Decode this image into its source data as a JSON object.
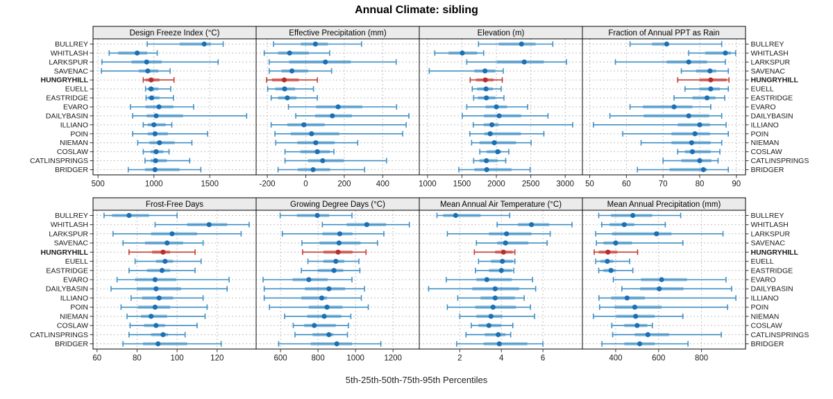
{
  "title": "Annual Climate: sibling",
  "caption": "5th-25th-50th-75th-95th Percentiles",
  "colors": {
    "series_line": "#3f8fc5",
    "series_dot": "#1a6fb5",
    "highlight_line": "#c43c34",
    "highlight_dot": "#b52f2c",
    "strip_bg": "#ebebeb",
    "panel_border": "#000000",
    "grid": "#bfbfbf",
    "tick": "#333333",
    "label_text": "#1a1a1a"
  },
  "chart_data": {
    "type": "dotplot-percentiles",
    "percentile_labels": [
      "5th",
      "25th",
      "50th",
      "75th",
      "95th"
    ],
    "stations": [
      "BULLREY",
      "WHITLASH",
      "LARKSPUR",
      "SAVENAC",
      "HUNGRYHILL",
      "EUELL",
      "EASTRIDGE",
      "EVARO",
      "DAILYBASIN",
      "ILLIANO",
      "POIN",
      "NIEMAN",
      "COSLAW",
      "CATLINSPRINGS",
      "BRIDGER"
    ],
    "highlight_station": "HUNGRYHILL",
    "legend_position": "none",
    "grid": "dashed",
    "panels": [
      {
        "title": "Design Freeze Index (°C)",
        "xlim": [
          455,
          1915
        ],
        "ticks": [
          500,
          1000,
          1500
        ],
        "values": [
          [
            940,
            1230,
            1450,
            1510,
            1620
          ],
          [
            600,
            680,
            850,
            940,
            1030
          ],
          [
            535,
            800,
            935,
            1070,
            1575
          ],
          [
            530,
            865,
            945,
            1040,
            1145
          ],
          [
            905,
            925,
            975,
            1050,
            1180
          ],
          [
            925,
            945,
            975,
            1040,
            1150
          ],
          [
            930,
            945,
            980,
            1050,
            1175
          ],
          [
            790,
            925,
            1045,
            1175,
            1355
          ],
          [
            810,
            935,
            1020,
            1260,
            1830
          ],
          [
            905,
            945,
            1000,
            1105,
            1160
          ],
          [
            810,
            945,
            1010,
            1125,
            1480
          ],
          [
            855,
            960,
            1050,
            1185,
            1340
          ],
          [
            905,
            970,
            1020,
            1085,
            1135
          ],
          [
            920,
            970,
            1015,
            1115,
            1320
          ],
          [
            770,
            920,
            1010,
            1230,
            1420
          ]
        ]
      },
      {
        "title": "Effective Precipitation (mm)",
        "xlim": [
          -258,
          590
        ],
        "ticks": [
          -200,
          0,
          200,
          400
        ],
        "values": [
          [
            -168,
            -26,
            50,
            115,
            290
          ],
          [
            -216,
            -144,
            -84,
            16,
            124
          ],
          [
            -190,
            -86,
            102,
            234,
            470
          ],
          [
            -190,
            -126,
            -72,
            12,
            134
          ],
          [
            -204,
            -176,
            -112,
            -36,
            60
          ],
          [
            -198,
            -158,
            -110,
            -56,
            40
          ],
          [
            -180,
            -144,
            -96,
            -48,
            60
          ],
          [
            -90,
            54,
            168,
            294,
            472
          ],
          [
            -52,
            48,
            138,
            240,
            536
          ],
          [
            -180,
            -96,
            -10,
            98,
            522
          ],
          [
            -160,
            -78,
            30,
            174,
            504
          ],
          [
            -156,
            -44,
            52,
            150,
            270
          ],
          [
            -108,
            -28,
            60,
            126,
            146
          ],
          [
            -108,
            12,
            88,
            198,
            420
          ],
          [
            -144,
            -42,
            38,
            126,
            306
          ]
        ]
      },
      {
        "title": "Elevation (m)",
        "xlim": [
          880,
          3250
        ],
        "ticks": [
          1000,
          1500,
          2000,
          2500,
          3000
        ],
        "values": [
          [
            1740,
            2035,
            2365,
            2570,
            2820
          ],
          [
            1105,
            1305,
            1505,
            1720,
            1815
          ],
          [
            1570,
            2010,
            2405,
            2690,
            3020
          ],
          [
            1025,
            1680,
            1835,
            1985,
            2100
          ],
          [
            1620,
            1705,
            1840,
            1960,
            2085
          ],
          [
            1650,
            1720,
            1850,
            1950,
            2070
          ],
          [
            1670,
            1730,
            1855,
            1985,
            2110
          ],
          [
            1570,
            1845,
            2000,
            2155,
            2455
          ],
          [
            1505,
            1820,
            2040,
            2360,
            2750
          ],
          [
            1665,
            1815,
            1935,
            2035,
            3110
          ],
          [
            1615,
            1825,
            1910,
            2355,
            2690
          ],
          [
            1640,
            1755,
            1970,
            2285,
            2505
          ],
          [
            1760,
            1860,
            2020,
            2070,
            2180
          ],
          [
            1670,
            1755,
            1855,
            2020,
            2135
          ],
          [
            1455,
            1680,
            1860,
            2220,
            2490
          ]
        ]
      },
      {
        "title": "Fraction of Annual PPT as Rain",
        "xlim": [
          48,
          92.5
        ],
        "ticks": [
          50,
          60,
          70,
          80,
          90
        ],
        "values": [
          [
            61,
            67,
            71,
            71.5,
            86
          ],
          [
            77,
            81.5,
            87,
            88.5,
            89.8
          ],
          [
            57,
            71,
            77,
            82,
            87
          ],
          [
            75,
            79,
            82.8,
            84.5,
            87.8
          ],
          [
            74,
            80,
            83,
            87.3,
            88
          ],
          [
            76,
            80,
            83,
            85.5,
            87.8
          ],
          [
            73,
            78,
            82,
            84.3,
            86.8
          ],
          [
            61,
            64.5,
            73,
            78,
            83
          ],
          [
            55.5,
            64.7,
            77,
            82.6,
            86
          ],
          [
            51,
            74,
            80,
            82.8,
            87.2
          ],
          [
            59,
            72.3,
            78.7,
            82.8,
            87.8
          ],
          [
            64,
            72.3,
            77.8,
            83,
            86
          ],
          [
            74,
            76,
            78,
            83,
            85.5
          ],
          [
            70,
            75,
            80,
            83.2,
            85
          ],
          [
            63,
            71.8,
            81,
            82,
            87.8
          ]
        ]
      },
      {
        "title": "Frost-Free Days",
        "xlim": [
          58,
          139.5
        ],
        "ticks": [
          60,
          80,
          100,
          120
        ],
        "values": [
          [
            63.5,
            67.5,
            76,
            86,
            100
          ],
          [
            89,
            105,
            116,
            125,
            136
          ],
          [
            68,
            87,
            97.5,
            110,
            132
          ],
          [
            73,
            84,
            95,
            103,
            113
          ],
          [
            76,
            87.5,
            93,
            96.5,
            109
          ],
          [
            79,
            89.5,
            94,
            98,
            112
          ],
          [
            76,
            85,
            92.5,
            96.5,
            109
          ],
          [
            70,
            79,
            89,
            99.5,
            126
          ],
          [
            67,
            80,
            89.5,
            102,
            125
          ],
          [
            77,
            82.5,
            91,
            98,
            113
          ],
          [
            72,
            80.5,
            89,
            96.5,
            115
          ],
          [
            75,
            82,
            87,
            95,
            114
          ],
          [
            76.5,
            83.5,
            89.5,
            94,
            110
          ],
          [
            76,
            87,
            93,
            95.5,
            104
          ],
          [
            73,
            83,
            90.5,
            105,
            122
          ]
        ]
      },
      {
        "title": "Growing Degree Days (°C)",
        "xlim": [
          470,
          1340
        ],
        "ticks": [
          600,
          800,
          1000,
          1200
        ],
        "values": [
          [
            598,
            687,
            796,
            860,
            981
          ],
          [
            823,
            953,
            1060,
            1163,
            1287
          ],
          [
            610,
            823,
            916,
            984,
            1151
          ],
          [
            714,
            808,
            912,
            1027,
            1117
          ],
          [
            718,
            829,
            907,
            984,
            1056
          ],
          [
            746,
            829,
            895,
            940,
            1018
          ],
          [
            711,
            798,
            885,
            934,
            1023
          ],
          [
            507,
            664,
            751,
            851,
            981
          ],
          [
            513,
            730,
            858,
            944,
            1048
          ],
          [
            513,
            711,
            820,
            848,
            1031
          ],
          [
            541,
            751,
            848,
            930,
            1068
          ],
          [
            622,
            742,
            833,
            924,
            975
          ],
          [
            668,
            726,
            780,
            895,
            962
          ],
          [
            677,
            771,
            858,
            882,
            957
          ],
          [
            590,
            761,
            900,
            981,
            1135
          ]
        ]
      },
      {
        "title": "Mean Annual Air Temperature (°C)",
        "xlim": [
          0.05,
          7.9
        ],
        "ticks": [
          2,
          4,
          6
        ],
        "values": [
          [
            0.9,
            1.2,
            1.8,
            3.0,
            4.4
          ],
          [
            3.8,
            4.8,
            5.45,
            6.3,
            7.4
          ],
          [
            1.4,
            3.4,
            4.25,
            5.45,
            6.35
          ],
          [
            2.8,
            3.8,
            4.2,
            5.3,
            6.2
          ],
          [
            2.7,
            3.7,
            4.1,
            4.55,
            4.65
          ],
          [
            2.9,
            3.5,
            4.05,
            4.55,
            4.65
          ],
          [
            2.75,
            3.4,
            4.0,
            4.5,
            4.6
          ],
          [
            1.35,
            2.8,
            3.3,
            4.5,
            5.5
          ],
          [
            0.5,
            2.6,
            3.7,
            4.85,
            5.65
          ],
          [
            1.9,
            3.0,
            3.7,
            4.65,
            5.1
          ],
          [
            1.4,
            2.75,
            3.6,
            4.7,
            5.4
          ],
          [
            2.0,
            2.8,
            3.5,
            4.05,
            5.6
          ],
          [
            2.55,
            2.9,
            3.4,
            4.0,
            4.55
          ],
          [
            2.3,
            3.2,
            3.85,
            4.2,
            4.45
          ],
          [
            1.85,
            3.15,
            3.9,
            5.25,
            6.0
          ]
        ]
      },
      {
        "title": "Mean Annual Precipitation (mm)",
        "xlim": [
          245,
          1005
        ],
        "ticks": [
          400,
          600,
          800
        ],
        "values": [
          [
            321,
            378,
            480,
            570,
            703
          ],
          [
            335,
            372,
            440,
            487,
            631
          ],
          [
            307,
            383,
            590,
            660,
            900
          ],
          [
            310,
            343,
            400,
            476,
            713
          ],
          [
            300,
            321,
            364,
            408,
            502
          ],
          [
            307,
            329,
            361,
            389,
            465
          ],
          [
            321,
            343,
            378,
            400,
            480
          ],
          [
            389,
            518,
            614,
            732,
            914
          ],
          [
            429,
            514,
            603,
            716,
            940
          ],
          [
            322,
            379,
            453,
            536,
            960
          ],
          [
            325,
            395,
            489,
            614,
            921
          ],
          [
            296,
            403,
            493,
            582,
            713
          ],
          [
            382,
            440,
            500,
            547,
            571
          ],
          [
            386,
            489,
            550,
            649,
            892
          ],
          [
            336,
            440,
            512,
            582,
            737
          ]
        ]
      }
    ]
  }
}
